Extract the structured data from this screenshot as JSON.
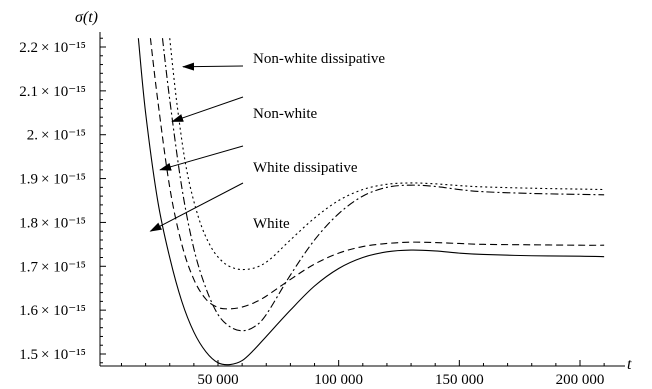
{
  "chart_data": {
    "type": "line",
    "xlabel": "t",
    "ylabel": "σ(t)",
    "xlim": [
      0,
      212000
    ],
    "ylim": [
      1.45,
      2.22
    ],
    "y_exponent_label": "× 10⁻¹⁵",
    "x_ticks": [
      {
        "value": 50000,
        "label": "50 000"
      },
      {
        "value": 100000,
        "label": "100 000"
      },
      {
        "value": 150000,
        "label": "150 000"
      },
      {
        "value": 200000,
        "label": "200 000"
      }
    ],
    "y_ticks": [
      {
        "value": 1.5,
        "label": "1.5"
      },
      {
        "value": 1.6,
        "label": "1.6"
      },
      {
        "value": 1.7,
        "label": "1.7"
      },
      {
        "value": 1.8,
        "label": "1.8"
      },
      {
        "value": 1.9,
        "label": "1.9"
      },
      {
        "value": 2.0,
        "label": "2."
      },
      {
        "value": 2.1,
        "label": "2.1"
      },
      {
        "value": 2.2,
        "label": "2.2"
      }
    ],
    "series": [
      {
        "name": "White",
        "dash": "none",
        "x": [
          17000,
          20000,
          25000,
          30000,
          35000,
          40000,
          45000,
          50000,
          55000,
          60000,
          65000,
          70000,
          80000,
          90000,
          100000,
          110000,
          120000,
          130000,
          140000,
          150000,
          160000,
          180000,
          200000,
          210000
        ],
        "y": [
          2.22,
          2.05,
          1.85,
          1.72,
          1.62,
          1.55,
          1.505,
          1.48,
          1.476,
          1.485,
          1.51,
          1.54,
          1.6,
          1.655,
          1.695,
          1.72,
          1.733,
          1.737,
          1.735,
          1.73,
          1.727,
          1.724,
          1.723,
          1.722
        ]
      },
      {
        "name": "White dissipative",
        "dash": "7,4",
        "x": [
          22000,
          25000,
          30000,
          35000,
          40000,
          45000,
          50000,
          55000,
          60000,
          65000,
          70000,
          80000,
          90000,
          100000,
          110000,
          120000,
          130000,
          140000,
          150000,
          160000,
          180000,
          200000,
          210000
        ],
        "y": [
          2.22,
          2.08,
          1.88,
          1.75,
          1.67,
          1.625,
          1.606,
          1.603,
          1.607,
          1.617,
          1.632,
          1.67,
          1.705,
          1.73,
          1.745,
          1.752,
          1.755,
          1.754,
          1.752,
          1.75,
          1.749,
          1.748,
          1.748
        ]
      },
      {
        "name": "Non-white",
        "dash": "8,3,2,3",
        "x": [
          27000,
          30000,
          35000,
          40000,
          45000,
          50000,
          55000,
          60000,
          65000,
          70000,
          80000,
          90000,
          100000,
          110000,
          120000,
          130000,
          140000,
          150000,
          160000,
          180000,
          200000,
          210000
        ],
        "y": [
          2.22,
          2.08,
          1.88,
          1.74,
          1.65,
          1.59,
          1.562,
          1.553,
          1.562,
          1.59,
          1.68,
          1.76,
          1.82,
          1.86,
          1.88,
          1.885,
          1.882,
          1.875,
          1.87,
          1.866,
          1.864,
          1.863
        ]
      },
      {
        "name": "Non-white dissipative",
        "dash": "2,3",
        "x": [
          30000,
          33000,
          37000,
          42000,
          47000,
          52000,
          57000,
          62000,
          67000,
          72000,
          80000,
          90000,
          100000,
          110000,
          120000,
          130000,
          140000,
          150000,
          160000,
          180000,
          200000,
          210000
        ],
        "y": [
          2.22,
          2.07,
          1.92,
          1.81,
          1.745,
          1.71,
          1.695,
          1.693,
          1.7,
          1.718,
          1.76,
          1.81,
          1.85,
          1.875,
          1.887,
          1.89,
          1.888,
          1.884,
          1.881,
          1.878,
          1.876,
          1.875
        ]
      }
    ],
    "annotations": [
      {
        "text": "Non-white dissipative",
        "tip_x": 35500,
        "tip_y": 2.155
      },
      {
        "text": "Non-white",
        "tip_x": 31000,
        "tip_y": 2.03
      },
      {
        "text": "White dissipative",
        "tip_x": 26000,
        "tip_y": 1.92
      },
      {
        "text": "White",
        "tip_x": 22000,
        "tip_y": 1.78
      }
    ]
  }
}
